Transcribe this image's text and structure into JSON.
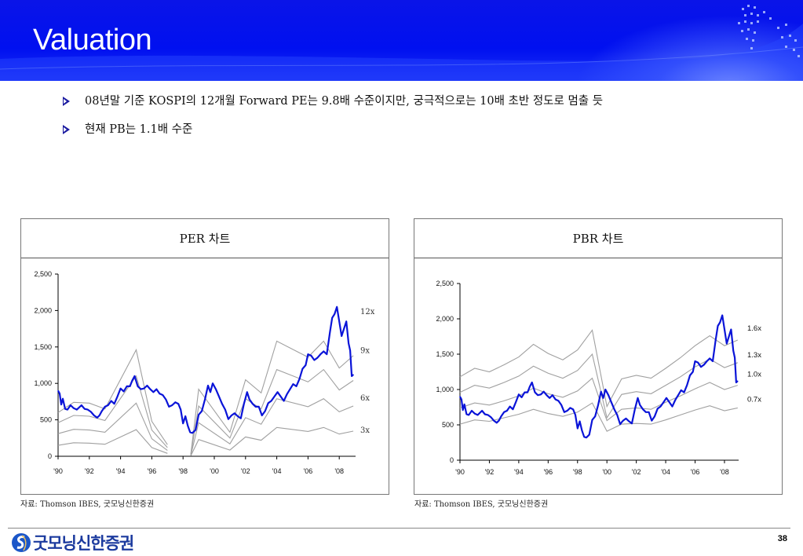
{
  "header": {
    "title": "Valuation"
  },
  "bullets": [
    "08년말 기준 KOSPI의 12개월 Forward PE는 9.8배 수준이지만, 궁극적으로는 10배 초반 정도로 멈출 듯",
    "현재 PB는 1.1배 수준"
  ],
  "colors": {
    "header_blue": "#0010f0",
    "kospi_line": "#0a14d8",
    "band_line": "#a0a0a0",
    "logo_blue": "#1b3a9e"
  },
  "chart_data": [
    {
      "type": "line",
      "title": "PER 차트",
      "source": "자료: Thomson IBES, 굿모닝신한증권",
      "xlim": [
        1990,
        2009
      ],
      "ylim": [
        0,
        2500
      ],
      "yticks": [
        "0",
        "500",
        "1,000",
        "1,500",
        "2,000",
        "2,500"
      ],
      "ytick_values": [
        0,
        500,
        1000,
        1500,
        2000,
        2500
      ],
      "xticks": [
        "'90",
        "'92",
        "'94",
        "'96",
        "'98",
        "'00",
        "'02",
        "'04",
        "'06",
        "'08"
      ],
      "xtick_values": [
        1990,
        1992,
        1994,
        1996,
        1998,
        2000,
        2002,
        2004,
        2006,
        2008
      ],
      "kospi": {
        "name": "KOSPI",
        "x": [
          1990.0,
          1990.1,
          1990.2,
          1990.3,
          1990.45,
          1990.6,
          1990.8,
          1991.0,
          1991.2,
          1991.5,
          1991.7,
          1991.9,
          1992.1,
          1992.3,
          1992.5,
          1992.65,
          1992.8,
          1993.0,
          1993.2,
          1993.4,
          1993.6,
          1993.8,
          1994.0,
          1994.2,
          1994.4,
          1994.6,
          1994.75,
          1994.9,
          1995.1,
          1995.3,
          1995.5,
          1995.7,
          1995.9,
          1996.1,
          1996.3,
          1996.5,
          1996.7,
          1996.9,
          1997.1,
          1997.3,
          1997.5,
          1997.7,
          1997.85,
          1998.0,
          1998.15,
          1998.3,
          1998.45,
          1998.6,
          1998.8,
          1999.0,
          1999.2,
          1999.4,
          1999.6,
          1999.75,
          1999.9,
          2000.1,
          2000.3,
          2000.5,
          2000.7,
          2000.9,
          2001.1,
          2001.3,
          2001.5,
          2001.7,
          2001.9,
          2002.1,
          2002.25,
          2002.45,
          2002.65,
          2002.85,
          2003.05,
          2003.25,
          2003.45,
          2003.65,
          2003.85,
          2004.05,
          2004.25,
          2004.45,
          2004.65,
          2004.85,
          2005.05,
          2005.25,
          2005.45,
          2005.65,
          2005.85,
          2006.0,
          2006.2,
          2006.4,
          2006.6,
          2006.8,
          2007.0,
          2007.2,
          2007.4,
          2007.55,
          2007.7,
          2007.85,
          2008.0,
          2008.15,
          2008.3,
          2008.45,
          2008.6,
          2008.7,
          2008.8,
          2008.9
        ],
        "y": [
          900,
          860,
          710,
          790,
          650,
          640,
          700,
          660,
          640,
          700,
          650,
          640,
          610,
          560,
          530,
          560,
          620,
          680,
          700,
          760,
          720,
          820,
          930,
          890,
          960,
          960,
          1040,
          1100,
          960,
          920,
          930,
          970,
          920,
          880,
          920,
          860,
          840,
          780,
          680,
          700,
          740,
          720,
          640,
          450,
          550,
          420,
          330,
          320,
          360,
          570,
          620,
          780,
          970,
          880,
          1000,
          920,
          820,
          720,
          640,
          510,
          560,
          590,
          550,
          520,
          720,
          880,
          780,
          720,
          680,
          680,
          560,
          620,
          730,
          760,
          820,
          880,
          820,
          760,
          850,
          920,
          990,
          960,
          1060,
          1200,
          1250,
          1400,
          1380,
          1320,
          1350,
          1400,
          1440,
          1400,
          1700,
          1900,
          1950,
          2050,
          1850,
          1650,
          1750,
          1850,
          1550,
          1450,
          1100,
          1120
        ]
      },
      "bands": [
        {
          "name": "12x",
          "x": [
            1990,
            1991,
            1992,
            1993,
            1995,
            1996,
            1997,
            null,
            1998.5,
            1999,
            2001,
            2002,
            2003,
            2004,
            2006,
            2007,
            2008,
            2008.9
          ],
          "y": [
            600,
            740,
            730,
            650,
            1460,
            480,
            160,
            null,
            30,
            920,
            330,
            1050,
            870,
            1580,
            1360,
            1580,
            1210,
            1380
          ]
        },
        {
          "name": "9x",
          "x": [
            1990,
            1991,
            1992,
            1993,
            1995,
            1996,
            1997,
            null,
            1998.5,
            1999,
            2001,
            2002,
            2003,
            2004,
            2006,
            2007,
            2008,
            2008.9
          ],
          "y": [
            460,
            560,
            550,
            490,
            1100,
            360,
            120,
            null,
            25,
            690,
            250,
            790,
            650,
            1190,
            1020,
            1190,
            910,
            1040
          ]
        },
        {
          "name": "6x",
          "x": [
            1990,
            1991,
            1992,
            1993,
            1995,
            1996,
            1997,
            null,
            1998.5,
            1999,
            2001,
            2002,
            2003,
            2004,
            2006,
            2007,
            2008,
            2008.9
          ],
          "y": [
            310,
            370,
            360,
            330,
            730,
            240,
            80,
            null,
            15,
            460,
            170,
            530,
            440,
            790,
            680,
            790,
            610,
            690
          ]
        },
        {
          "name": "3x",
          "x": [
            1990,
            1991,
            1992,
            1993,
            1995,
            1996,
            1997,
            null,
            1998.5,
            1999,
            2001,
            2002,
            2003,
            2004,
            2006,
            2007,
            2008,
            2008.9
          ],
          "y": [
            150,
            185,
            180,
            165,
            365,
            120,
            40,
            null,
            8,
            230,
            85,
            265,
            220,
            395,
            340,
            395,
            305,
            345
          ]
        }
      ]
    },
    {
      "type": "line",
      "title": "PBR 차트",
      "source": "자료: Thomson IBES, 굿모닝신한증권",
      "xlim": [
        1990,
        2009
      ],
      "ylim": [
        0,
        2500
      ],
      "yticks": [
        "0",
        "500",
        "1,000",
        "1,500",
        "2,000",
        "2,500"
      ],
      "ytick_values": [
        0,
        500,
        1000,
        1500,
        2000,
        2500
      ],
      "xticks": [
        "'90",
        "'92",
        "'94",
        "'96",
        "'98",
        "'00",
        "'02",
        "'04",
        "'06",
        "'08"
      ],
      "xtick_values": [
        1990,
        1992,
        1994,
        1996,
        1998,
        2000,
        2002,
        2004,
        2006,
        2008
      ],
      "kospi": {
        "name": "KOSPI",
        "x": [
          1990.0,
          1990.1,
          1990.2,
          1990.3,
          1990.45,
          1990.6,
          1990.8,
          1991.0,
          1991.2,
          1991.5,
          1991.7,
          1991.9,
          1992.1,
          1992.3,
          1992.5,
          1992.65,
          1992.8,
          1993.0,
          1993.2,
          1993.4,
          1993.6,
          1993.8,
          1994.0,
          1994.2,
          1994.4,
          1994.6,
          1994.75,
          1994.9,
          1995.1,
          1995.3,
          1995.5,
          1995.7,
          1995.9,
          1996.1,
          1996.3,
          1996.5,
          1996.7,
          1996.9,
          1997.1,
          1997.3,
          1997.5,
          1997.7,
          1997.85,
          1998.0,
          1998.15,
          1998.3,
          1998.45,
          1998.6,
          1998.8,
          1999.0,
          1999.2,
          1999.4,
          1999.6,
          1999.75,
          1999.9,
          2000.1,
          2000.3,
          2000.5,
          2000.7,
          2000.9,
          2001.1,
          2001.3,
          2001.5,
          2001.7,
          2001.9,
          2002.1,
          2002.25,
          2002.45,
          2002.65,
          2002.85,
          2003.05,
          2003.25,
          2003.45,
          2003.65,
          2003.85,
          2004.05,
          2004.25,
          2004.45,
          2004.65,
          2004.85,
          2005.05,
          2005.25,
          2005.45,
          2005.65,
          2005.85,
          2006.0,
          2006.2,
          2006.4,
          2006.6,
          2006.8,
          2007.0,
          2007.2,
          2007.4,
          2007.55,
          2007.7,
          2007.85,
          2008.0,
          2008.15,
          2008.3,
          2008.45,
          2008.6,
          2008.7,
          2008.8,
          2008.9
        ],
        "y": [
          900,
          860,
          710,
          790,
          650,
          640,
          700,
          660,
          640,
          700,
          650,
          640,
          610,
          560,
          530,
          560,
          620,
          680,
          700,
          760,
          720,
          820,
          930,
          890,
          960,
          960,
          1040,
          1100,
          960,
          920,
          930,
          970,
          920,
          880,
          920,
          860,
          840,
          780,
          680,
          700,
          740,
          720,
          640,
          450,
          550,
          420,
          330,
          320,
          360,
          570,
          620,
          780,
          970,
          880,
          1000,
          920,
          820,
          720,
          640,
          510,
          560,
          590,
          550,
          520,
          720,
          880,
          780,
          720,
          680,
          680,
          560,
          620,
          730,
          760,
          820,
          880,
          820,
          760,
          850,
          920,
          990,
          960,
          1060,
          1200,
          1250,
          1400,
          1380,
          1320,
          1350,
          1400,
          1440,
          1400,
          1700,
          1900,
          1950,
          2050,
          1850,
          1650,
          1750,
          1850,
          1550,
          1450,
          1100,
          1120
        ]
      },
      "bands": [
        {
          "name": "1.6x",
          "x": [
            1990,
            1991,
            1992,
            1993,
            1994,
            1995,
            1996,
            1997,
            1998,
            1999,
            2000,
            2001,
            2002,
            2003,
            2004,
            2005,
            2006,
            2007,
            2008,
            2008.9
          ],
          "y": [
            1180,
            1300,
            1250,
            1350,
            1460,
            1640,
            1510,
            1420,
            1560,
            1840,
            760,
            1150,
            1200,
            1160,
            1300,
            1450,
            1620,
            1760,
            1620,
            1700
          ]
        },
        {
          "name": "1.3x",
          "x": [
            1990,
            1991,
            1992,
            1993,
            1994,
            1995,
            1996,
            1997,
            1998,
            1999,
            2000,
            2001,
            2002,
            2003,
            2004,
            2005,
            2006,
            2007,
            2008,
            2008.9
          ],
          "y": [
            960,
            1060,
            1020,
            1100,
            1190,
            1330,
            1230,
            1160,
            1270,
            1500,
            600,
            930,
            970,
            940,
            1060,
            1180,
            1320,
            1430,
            1310,
            1380
          ]
        },
        {
          "name": "1.0x",
          "x": [
            1990,
            1991,
            1992,
            1993,
            1994,
            1995,
            1996,
            1997,
            1998,
            1999,
            2000,
            2001,
            2002,
            2003,
            2004,
            2005,
            2006,
            2007,
            2008,
            2008.9
          ],
          "y": [
            740,
            810,
            780,
            840,
            910,
            1020,
            940,
            890,
            980,
            1160,
            560,
            720,
            740,
            720,
            820,
            910,
            1010,
            1100,
            1000,
            1060
          ]
        },
        {
          "name": "0.7x",
          "x": [
            1990,
            1991,
            1992,
            1993,
            1994,
            1995,
            1996,
            1997,
            1998,
            1999,
            2000,
            2001,
            2002,
            2003,
            2004,
            2005,
            2006,
            2007,
            2008,
            2008.9
          ],
          "y": [
            510,
            570,
            550,
            600,
            650,
            720,
            660,
            620,
            680,
            810,
            410,
            510,
            520,
            510,
            570,
            640,
            710,
            770,
            700,
            740
          ]
        }
      ]
    }
  ],
  "footer": {
    "logo_text": "굿모닝신한증권",
    "page_number": "38"
  }
}
